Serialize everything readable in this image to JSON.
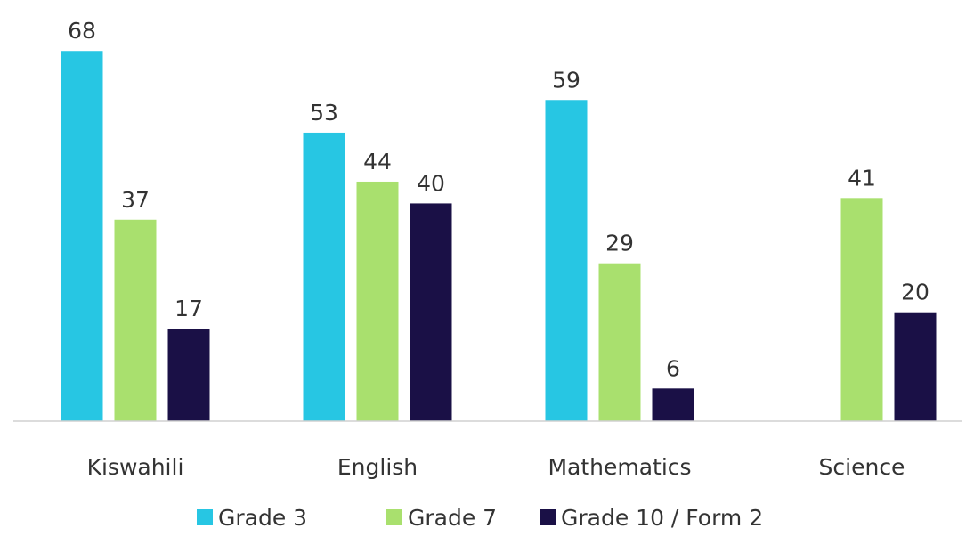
{
  "chart_data": {
    "type": "bar",
    "categories": [
      "Kiswahili",
      "English",
      "Mathematics",
      "Science"
    ],
    "series": [
      {
        "name": "Grade 3",
        "color": "#27c6e3",
        "values": [
          68,
          53,
          59,
          null
        ]
      },
      {
        "name": "Grade 7",
        "color": "#a9e06e",
        "values": [
          37,
          44,
          29,
          41
        ]
      },
      {
        "name": "Grade 10 / Form 2",
        "color": "#1a1046",
        "values": [
          17,
          40,
          6,
          20
        ]
      }
    ],
    "ylim": [
      0,
      70
    ],
    "legend": "bottom"
  }
}
